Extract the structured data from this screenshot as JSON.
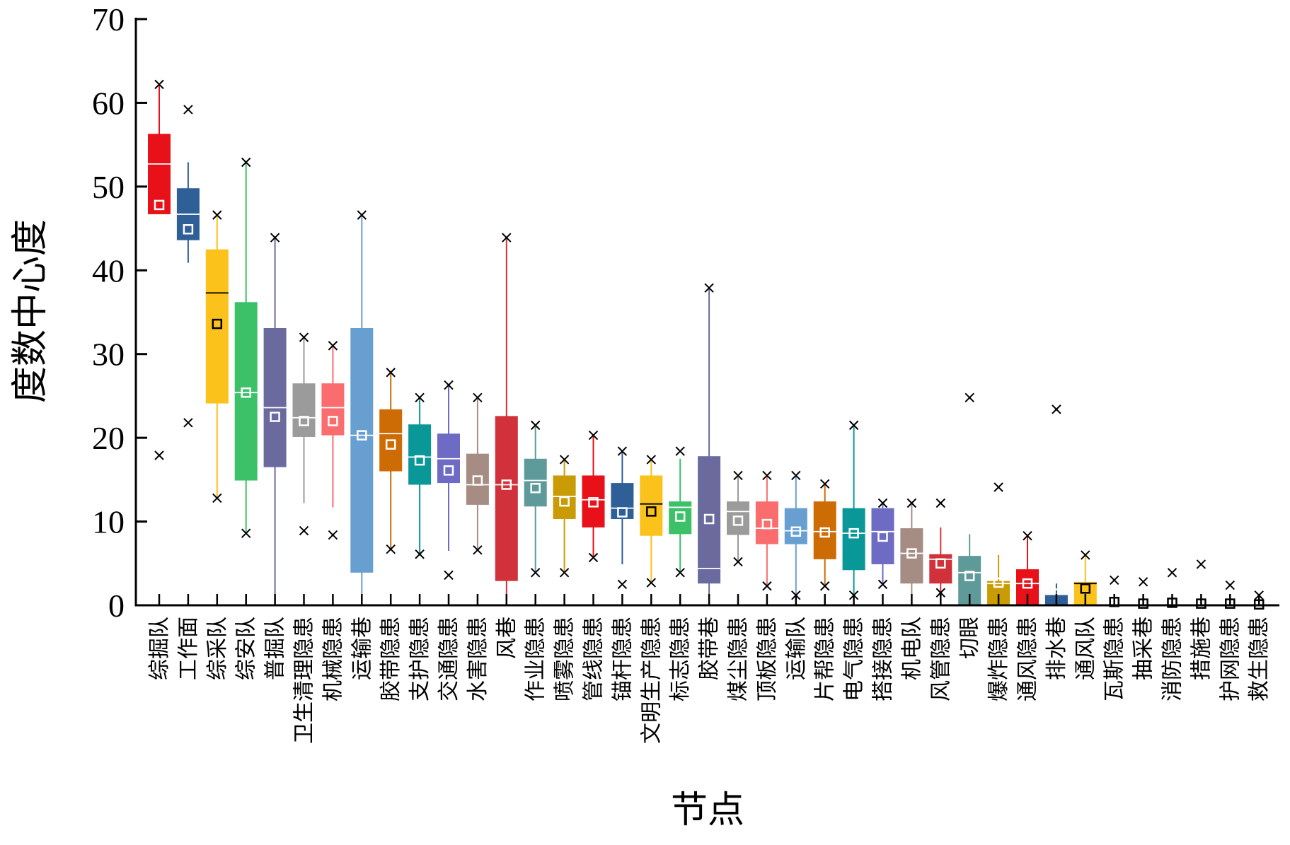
{
  "chart_data": {
    "type": "box",
    "xlabel": "节点",
    "ylabel": "度数中心度",
    "ylim": [
      0,
      70
    ],
    "yticks": [
      0,
      10,
      20,
      30,
      40,
      50,
      60,
      70
    ],
    "grid": false,
    "legend": "none",
    "categories": [
      {
        "name": "综掘队",
        "color": "#e8111a",
        "q1": 46.7,
        "median": 52.7,
        "q3": 56.3,
        "whisker_low": 46.7,
        "whisker_high": 62.2,
        "mean": 47.8,
        "min": 17.9,
        "max": 62.2,
        "outliers": [
          17.9
        ]
      },
      {
        "name": "工作面",
        "color": "#2e5f96",
        "q1": 43.6,
        "median": 46.7,
        "q3": 49.8,
        "whisker_low": 40.9,
        "whisker_high": 52.9,
        "mean": 44.9,
        "min": 21.8,
        "max": 59.2,
        "outliers": [
          21.8,
          59.2
        ]
      },
      {
        "name": "综采队",
        "color": "#fbc21b",
        "q1": 24.1,
        "median": 37.3,
        "q3": 42.5,
        "whisker_low": 12.8,
        "whisker_high": 46.6,
        "mean": 33.6,
        "min": 12.8,
        "max": 46.6,
        "outliers": []
      },
      {
        "name": "综安队",
        "color": "#3cc168",
        "q1": 14.9,
        "median": 25.4,
        "q3": 36.2,
        "whisker_low": 8.6,
        "whisker_high": 52.9,
        "mean": 25.4,
        "min": 8.6,
        "max": 52.9,
        "outliers": []
      },
      {
        "name": "普掘队",
        "color": "#6a6a9e",
        "q1": 16.5,
        "median": 23.6,
        "q3": 33.1,
        "whisker_low": 0,
        "whisker_high": 43.9,
        "mean": 22.5,
        "min": 0,
        "max": 43.9,
        "outliers": []
      },
      {
        "name": "卫生清理隐患",
        "color": "#9b9b9b",
        "q1": 20.1,
        "median": 22.4,
        "q3": 26.5,
        "whisker_low": 12.2,
        "whisker_high": 32.0,
        "mean": 22.0,
        "min": 8.9,
        "max": 32.0,
        "outliers": [
          8.9
        ]
      },
      {
        "name": "机械隐患",
        "color": "#fa6d6e",
        "q1": 20.3,
        "median": 23.6,
        "q3": 26.5,
        "whisker_low": 11.7,
        "whisker_high": 31.0,
        "mean": 22.0,
        "min": 8.4,
        "max": 31.0,
        "outliers": [
          8.4
        ]
      },
      {
        "name": "运输巷",
        "color": "#689fd1",
        "q1": 3.9,
        "median": 20.3,
        "q3": 33.1,
        "whisker_low": 0,
        "whisker_high": 46.6,
        "mean": 20.3,
        "min": 0,
        "max": 46.6,
        "outliers": []
      },
      {
        "name": "胶带隐患",
        "color": "#cd6b04",
        "q1": 16.0,
        "median": 20.5,
        "q3": 23.4,
        "whisker_low": 6.7,
        "whisker_high": 27.8,
        "mean": 19.2,
        "min": 6.7,
        "max": 27.8,
        "outliers": []
      },
      {
        "name": "支护隐患",
        "color": "#0a9797",
        "q1": 14.4,
        "median": 17.7,
        "q3": 21.6,
        "whisker_low": 6.1,
        "whisker_high": 24.8,
        "mean": 17.3,
        "min": 6.1,
        "max": 24.8,
        "outliers": []
      },
      {
        "name": "交通隐患",
        "color": "#6e6bc4",
        "q1": 14.6,
        "median": 17.5,
        "q3": 20.5,
        "whisker_low": 6.5,
        "whisker_high": 26.3,
        "mean": 16.1,
        "min": 3.6,
        "max": 26.3,
        "outliers": [
          3.6
        ]
      },
      {
        "name": "水害隐患",
        "color": "#a58d84",
        "q1": 12.0,
        "median": 14.4,
        "q3": 18.1,
        "whisker_low": 6.6,
        "whisker_high": 24.8,
        "mean": 14.9,
        "min": 6.6,
        "max": 24.8,
        "outliers": []
      },
      {
        "name": "风巷",
        "color": "#d1313b",
        "q1": 2.9,
        "median": 14.4,
        "q3": 22.6,
        "whisker_low": 0,
        "whisker_high": 43.9,
        "mean": 14.4,
        "min": 0,
        "max": 43.9,
        "outliers": []
      },
      {
        "name": "作业隐患",
        "color": "#5e9a9a",
        "q1": 11.8,
        "median": 14.9,
        "q3": 17.5,
        "whisker_low": 3.9,
        "whisker_high": 21.5,
        "mean": 14.0,
        "min": 3.9,
        "max": 21.5,
        "outliers": []
      },
      {
        "name": "喷雾隐患",
        "color": "#c99b04",
        "q1": 10.3,
        "median": 13.0,
        "q3": 15.5,
        "whisker_low": 3.9,
        "whisker_high": 17.4,
        "mean": 12.4,
        "min": 3.9,
        "max": 17.4,
        "outliers": []
      },
      {
        "name": "管线隐患",
        "color": "#e8111a",
        "q1": 9.3,
        "median": 12.6,
        "q3": 15.5,
        "whisker_low": 5.7,
        "whisker_high": 20.3,
        "mean": 12.3,
        "min": 5.7,
        "max": 20.3,
        "outliers": []
      },
      {
        "name": "锚杆隐患",
        "color": "#2e5f96",
        "q1": 10.3,
        "median": 11.6,
        "q3": 14.6,
        "whisker_low": 4.9,
        "whisker_high": 18.4,
        "mean": 11.1,
        "min": 2.5,
        "max": 18.4,
        "outliers": [
          2.5
        ]
      },
      {
        "name": "文明生产隐患",
        "color": "#fbc21b",
        "q1": 8.3,
        "median": 12.1,
        "q3": 15.5,
        "whisker_low": 2.7,
        "whisker_high": 17.4,
        "mean": 11.2,
        "min": 2.7,
        "max": 17.4,
        "outliers": []
      },
      {
        "name": "标志隐患",
        "color": "#3cc168",
        "q1": 8.5,
        "median": 11.7,
        "q3": 12.4,
        "whisker_low": 3.9,
        "whisker_high": 17.5,
        "mean": 10.6,
        "min": 3.9,
        "max": 18.4,
        "outliers": [
          18.4
        ]
      },
      {
        "name": "胶带巷",
        "color": "#6a6a9e",
        "q1": 2.6,
        "median": 4.4,
        "q3": 17.8,
        "whisker_low": 0,
        "whisker_high": 37.9,
        "mean": 10.3,
        "min": 0,
        "max": 37.9,
        "outliers": []
      },
      {
        "name": "煤尘隐患",
        "color": "#9b9b9b",
        "q1": 8.4,
        "median": 11.2,
        "q3": 12.4,
        "whisker_low": 5.2,
        "whisker_high": 15.5,
        "mean": 10.1,
        "min": 5.2,
        "max": 15.5,
        "outliers": []
      },
      {
        "name": "顶板隐患",
        "color": "#fa6d6e",
        "q1": 7.3,
        "median": 9.2,
        "q3": 12.4,
        "whisker_low": 2.3,
        "whisker_high": 15.5,
        "mean": 9.7,
        "min": 2.3,
        "max": 15.5,
        "outliers": []
      },
      {
        "name": "运输队",
        "color": "#689fd1",
        "q1": 7.3,
        "median": 8.9,
        "q3": 11.6,
        "whisker_low": 1.2,
        "whisker_high": 15.5,
        "mean": 8.8,
        "min": 1.2,
        "max": 15.5,
        "outliers": []
      },
      {
        "name": "片帮隐患",
        "color": "#cd6b04",
        "q1": 5.5,
        "median": 8.8,
        "q3": 12.4,
        "whisker_low": 2.3,
        "whisker_high": 14.5,
        "mean": 8.7,
        "min": 2.3,
        "max": 14.5,
        "outliers": []
      },
      {
        "name": "电气隐患",
        "color": "#0a9797",
        "q1": 4.2,
        "median": 8.6,
        "q3": 11.6,
        "whisker_low": 1.2,
        "whisker_high": 21.5,
        "mean": 8.6,
        "min": 1.2,
        "max": 21.5,
        "outliers": []
      },
      {
        "name": "搭接隐患",
        "color": "#6e6bc4",
        "q1": 4.9,
        "median": 8.8,
        "q3": 11.6,
        "whisker_low": 2.5,
        "whisker_high": 12.2,
        "mean": 8.2,
        "min": 2.5,
        "max": 12.2,
        "outliers": []
      },
      {
        "name": "机电队",
        "color": "#a58d84",
        "q1": 2.6,
        "median": 6.2,
        "q3": 9.2,
        "whisker_low": 0,
        "whisker_high": 12.2,
        "mean": 6.2,
        "min": 0,
        "max": 12.2,
        "outliers": []
      },
      {
        "name": "风管隐患",
        "color": "#d1313b",
        "q1": 2.6,
        "median": 5.5,
        "q3": 6.1,
        "whisker_low": 1.5,
        "whisker_high": 9.3,
        "mean": 5.0,
        "min": 1.5,
        "max": 12.2,
        "outliers": [
          12.2
        ]
      },
      {
        "name": "切眼",
        "color": "#5e9a9a",
        "q1": 0,
        "median": 3.9,
        "q3": 5.9,
        "whisker_low": 0,
        "whisker_high": 8.5,
        "mean": 3.5,
        "min": 0,
        "max": 24.8,
        "outliers": [
          24.8
        ]
      },
      {
        "name": "爆炸隐患",
        "color": "#c99b04",
        "q1": 0,
        "median": 2.6,
        "q3": 2.9,
        "whisker_low": 0,
        "whisker_high": 6.0,
        "mean": 2.7,
        "min": 0,
        "max": 14.1,
        "outliers": [
          14.1
        ]
      },
      {
        "name": "通风隐患",
        "color": "#e8111a",
        "q1": 0,
        "median": 2.6,
        "q3": 4.3,
        "whisker_low": 0,
        "whisker_high": 8.3,
        "mean": 2.6,
        "min": 0,
        "max": 8.3,
        "outliers": []
      },
      {
        "name": "排水巷",
        "color": "#2e5f96",
        "q1": 0,
        "median": 1.3,
        "q3": 1.3,
        "whisker_low": 0,
        "whisker_high": 2.6,
        "mean": 2.4,
        "min": 0,
        "max": 23.4,
        "outliers": [
          23.4
        ]
      },
      {
        "name": "通风队",
        "color": "#fbc21b",
        "q1": 0,
        "median": 2.6,
        "q3": 2.8,
        "whisker_low": 0,
        "whisker_high": 6.0,
        "mean": 2.0,
        "min": 0,
        "max": 6.0,
        "outliers": []
      },
      {
        "name": "瓦斯隐患",
        "color": "#3cc168",
        "q1": 0,
        "median": 0,
        "q3": 0,
        "whisker_low": 0,
        "whisker_high": 0,
        "mean": 0.4,
        "min": 0,
        "max": 3.0,
        "outliers": [
          3.0
        ]
      },
      {
        "name": "抽采巷",
        "color": "#6a6a9e",
        "q1": 0,
        "median": 0,
        "q3": 0,
        "whisker_low": 0,
        "whisker_high": 0,
        "mean": 0.2,
        "min": 0,
        "max": 2.8,
        "outliers": [
          2.8
        ]
      },
      {
        "name": "消防隐患",
        "color": "#9b9b9b",
        "q1": 0,
        "median": 0,
        "q3": 0,
        "whisker_low": 0,
        "whisker_high": 0,
        "mean": 0.3,
        "min": 0,
        "max": 3.9,
        "outliers": [
          3.9
        ]
      },
      {
        "name": "措施巷",
        "color": "#fa6d6e",
        "q1": 0,
        "median": 0,
        "q3": 0,
        "whisker_low": 0,
        "whisker_high": 0,
        "mean": 0.2,
        "min": 0,
        "max": 4.9,
        "outliers": [
          4.9
        ]
      },
      {
        "name": "护网隐患",
        "color": "#689fd1",
        "q1": 0,
        "median": 0,
        "q3": 0,
        "whisker_low": 0,
        "whisker_high": 0,
        "mean": 0.2,
        "min": 0,
        "max": 2.4,
        "outliers": [
          2.4
        ]
      },
      {
        "name": "救生隐患",
        "color": "#cd6b04",
        "q1": 0,
        "median": 0,
        "q3": 0,
        "whisker_low": 0,
        "whisker_high": 0,
        "mean": 0.1,
        "min": 0,
        "max": 1.2,
        "outliers": [
          1.2
        ]
      }
    ]
  }
}
